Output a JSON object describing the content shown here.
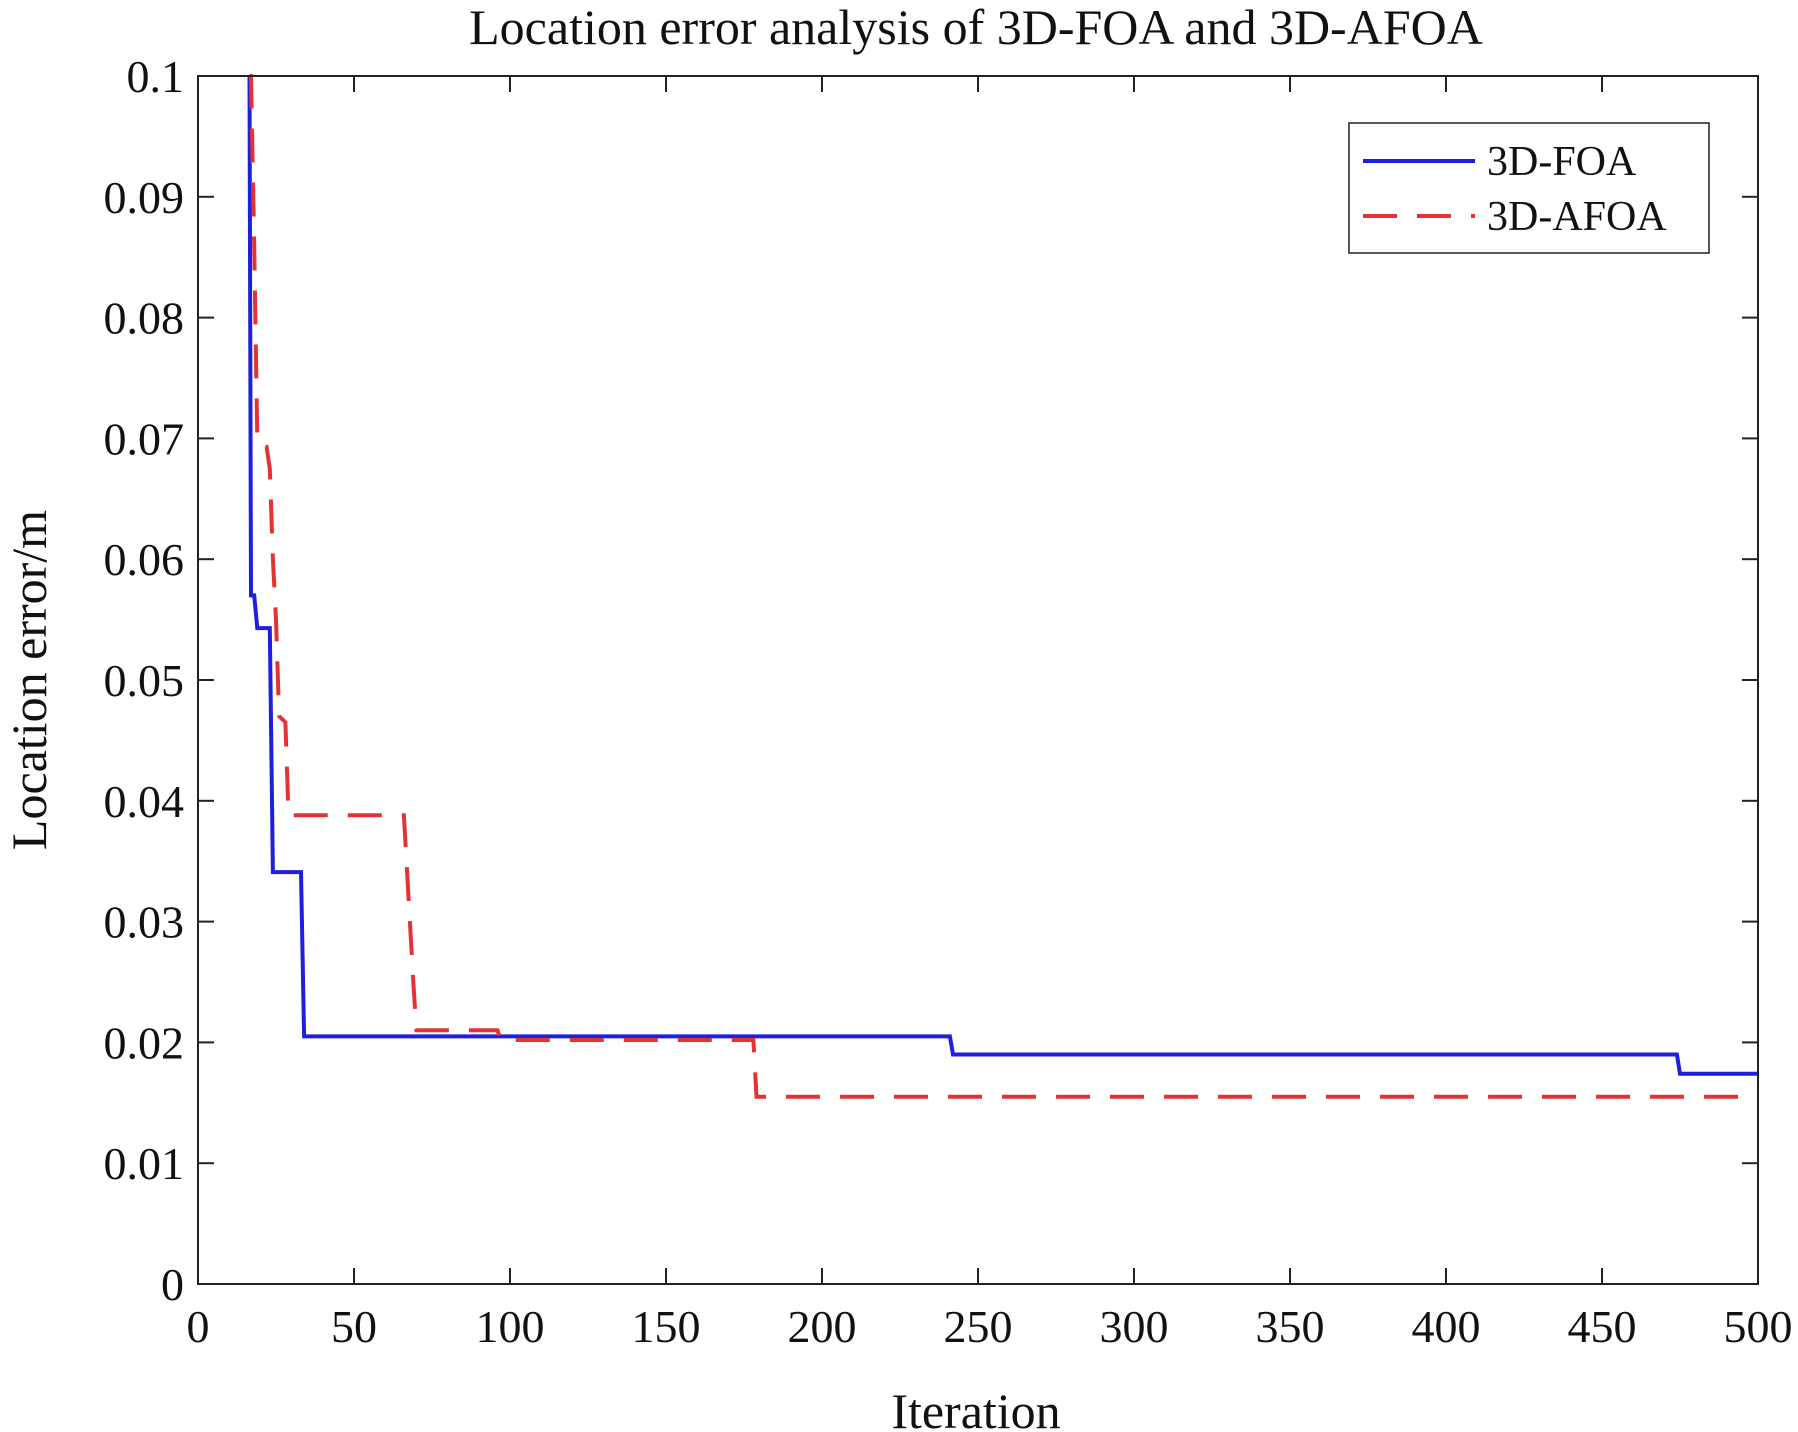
{
  "chart_data": {
    "type": "line",
    "title": "Location error analysis of 3D-FOA and 3D-AFOA",
    "xlabel": "Iteration",
    "ylabel": "Location error/m",
    "xlim": [
      0,
      500
    ],
    "ylim": [
      0,
      0.1
    ],
    "x_ticks": [
      0,
      50,
      100,
      150,
      200,
      250,
      300,
      350,
      400,
      450,
      500
    ],
    "x_tick_labels": [
      "0",
      "50",
      "100",
      "150",
      "200",
      "250",
      "300",
      "350",
      "400",
      "450",
      "500"
    ],
    "y_ticks": [
      0,
      0.01,
      0.02,
      0.03,
      0.04,
      0.05,
      0.06,
      0.07,
      0.08,
      0.09,
      0.1
    ],
    "y_tick_labels": [
      "0",
      "0.01",
      "0.02",
      "0.03",
      "0.04",
      "0.05",
      "0.06",
      "0.07",
      "0.08",
      "0.09",
      "0.1"
    ],
    "grid": false,
    "legend_position": "top-right",
    "series": [
      {
        "name": "3D-FOA",
        "color": "#1f1fe0",
        "style": "solid",
        "points": [
          [
            16.5,
            0.1
          ],
          [
            17,
            0.057
          ],
          [
            18,
            0.057
          ],
          [
            19,
            0.0543
          ],
          [
            23,
            0.0543
          ],
          [
            24,
            0.0341
          ],
          [
            33,
            0.0341
          ],
          [
            34,
            0.0205
          ],
          [
            241,
            0.0205
          ],
          [
            242,
            0.019
          ],
          [
            474,
            0.019
          ],
          [
            475,
            0.0174
          ],
          [
            500,
            0.0174
          ]
        ]
      },
      {
        "name": "3D-AFOA",
        "color": "#e53333",
        "style": "dashed",
        "points": [
          [
            16.5,
            0.1
          ],
          [
            17,
            0.1
          ],
          [
            18,
            0.086
          ],
          [
            19,
            0.07
          ],
          [
            20,
            0.0693
          ],
          [
            22,
            0.0693
          ],
          [
            23,
            0.0675
          ],
          [
            24,
            0.06
          ],
          [
            25,
            0.055
          ],
          [
            26,
            0.047
          ],
          [
            28,
            0.0465
          ],
          [
            29,
            0.0388
          ],
          [
            66,
            0.0388
          ],
          [
            69,
            0.025
          ],
          [
            70,
            0.021
          ],
          [
            96,
            0.021
          ],
          [
            97,
            0.0202
          ],
          [
            178,
            0.0202
          ],
          [
            179,
            0.0155
          ],
          [
            500,
            0.0155
          ]
        ]
      }
    ]
  }
}
